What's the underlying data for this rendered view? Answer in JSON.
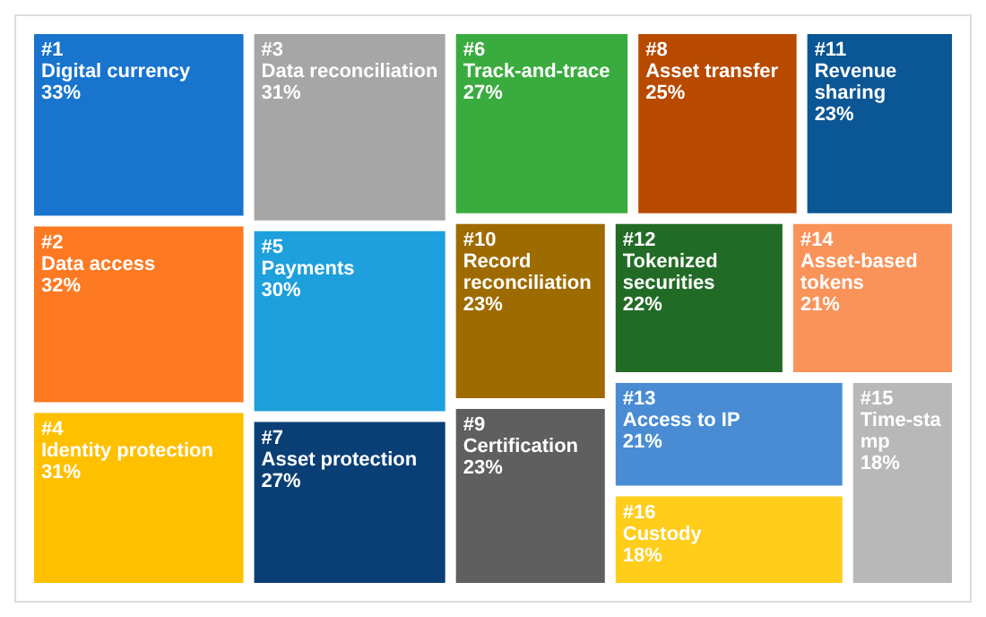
{
  "chart_data": {
    "type": "other",
    "categories": [
      "#1\nDigital currency",
      "#2\nData access",
      "#3\nData reconciliation",
      "#4\nIdentity protection",
      "#5\nPayments",
      "#6\nTrack-and-trace",
      "#7\nAsset protection",
      "#8\nAsset transfer",
      "#9\nCertification",
      "#10\nRecord reconciliation",
      "#11\nRevenue sharing",
      "#12\nTokenized securities",
      "#13\nAccess to IP",
      "#14\nAsset-based tokens",
      "#15\nTime-stamp",
      "#16\nCustody"
    ],
    "values": [
      33,
      32,
      31,
      31,
      30,
      27,
      27,
      25,
      23,
      23,
      23,
      22,
      21,
      21,
      18,
      18
    ],
    "value_labels": [
      "33%",
      "32%",
      "31%",
      "31%",
      "30%",
      "27%",
      "27%",
      "25%",
      "23%",
      "23%",
      "23%",
      "22%",
      "21%",
      "21%",
      "18%",
      "18%"
    ],
    "colors": [
      "#1874cd",
      "#fd7a22",
      "#a6a6a6",
      "#ffc000",
      "#1ea0dc",
      "#3aab3e",
      "#0a3f75",
      "#b84a00",
      "#5f5f5f",
      "#9e6b00",
      "#0b5694",
      "#226b26",
      "#4a8cd4",
      "#f9935a",
      "#b8b8b8",
      "#ffcd1a"
    ]
  }
}
